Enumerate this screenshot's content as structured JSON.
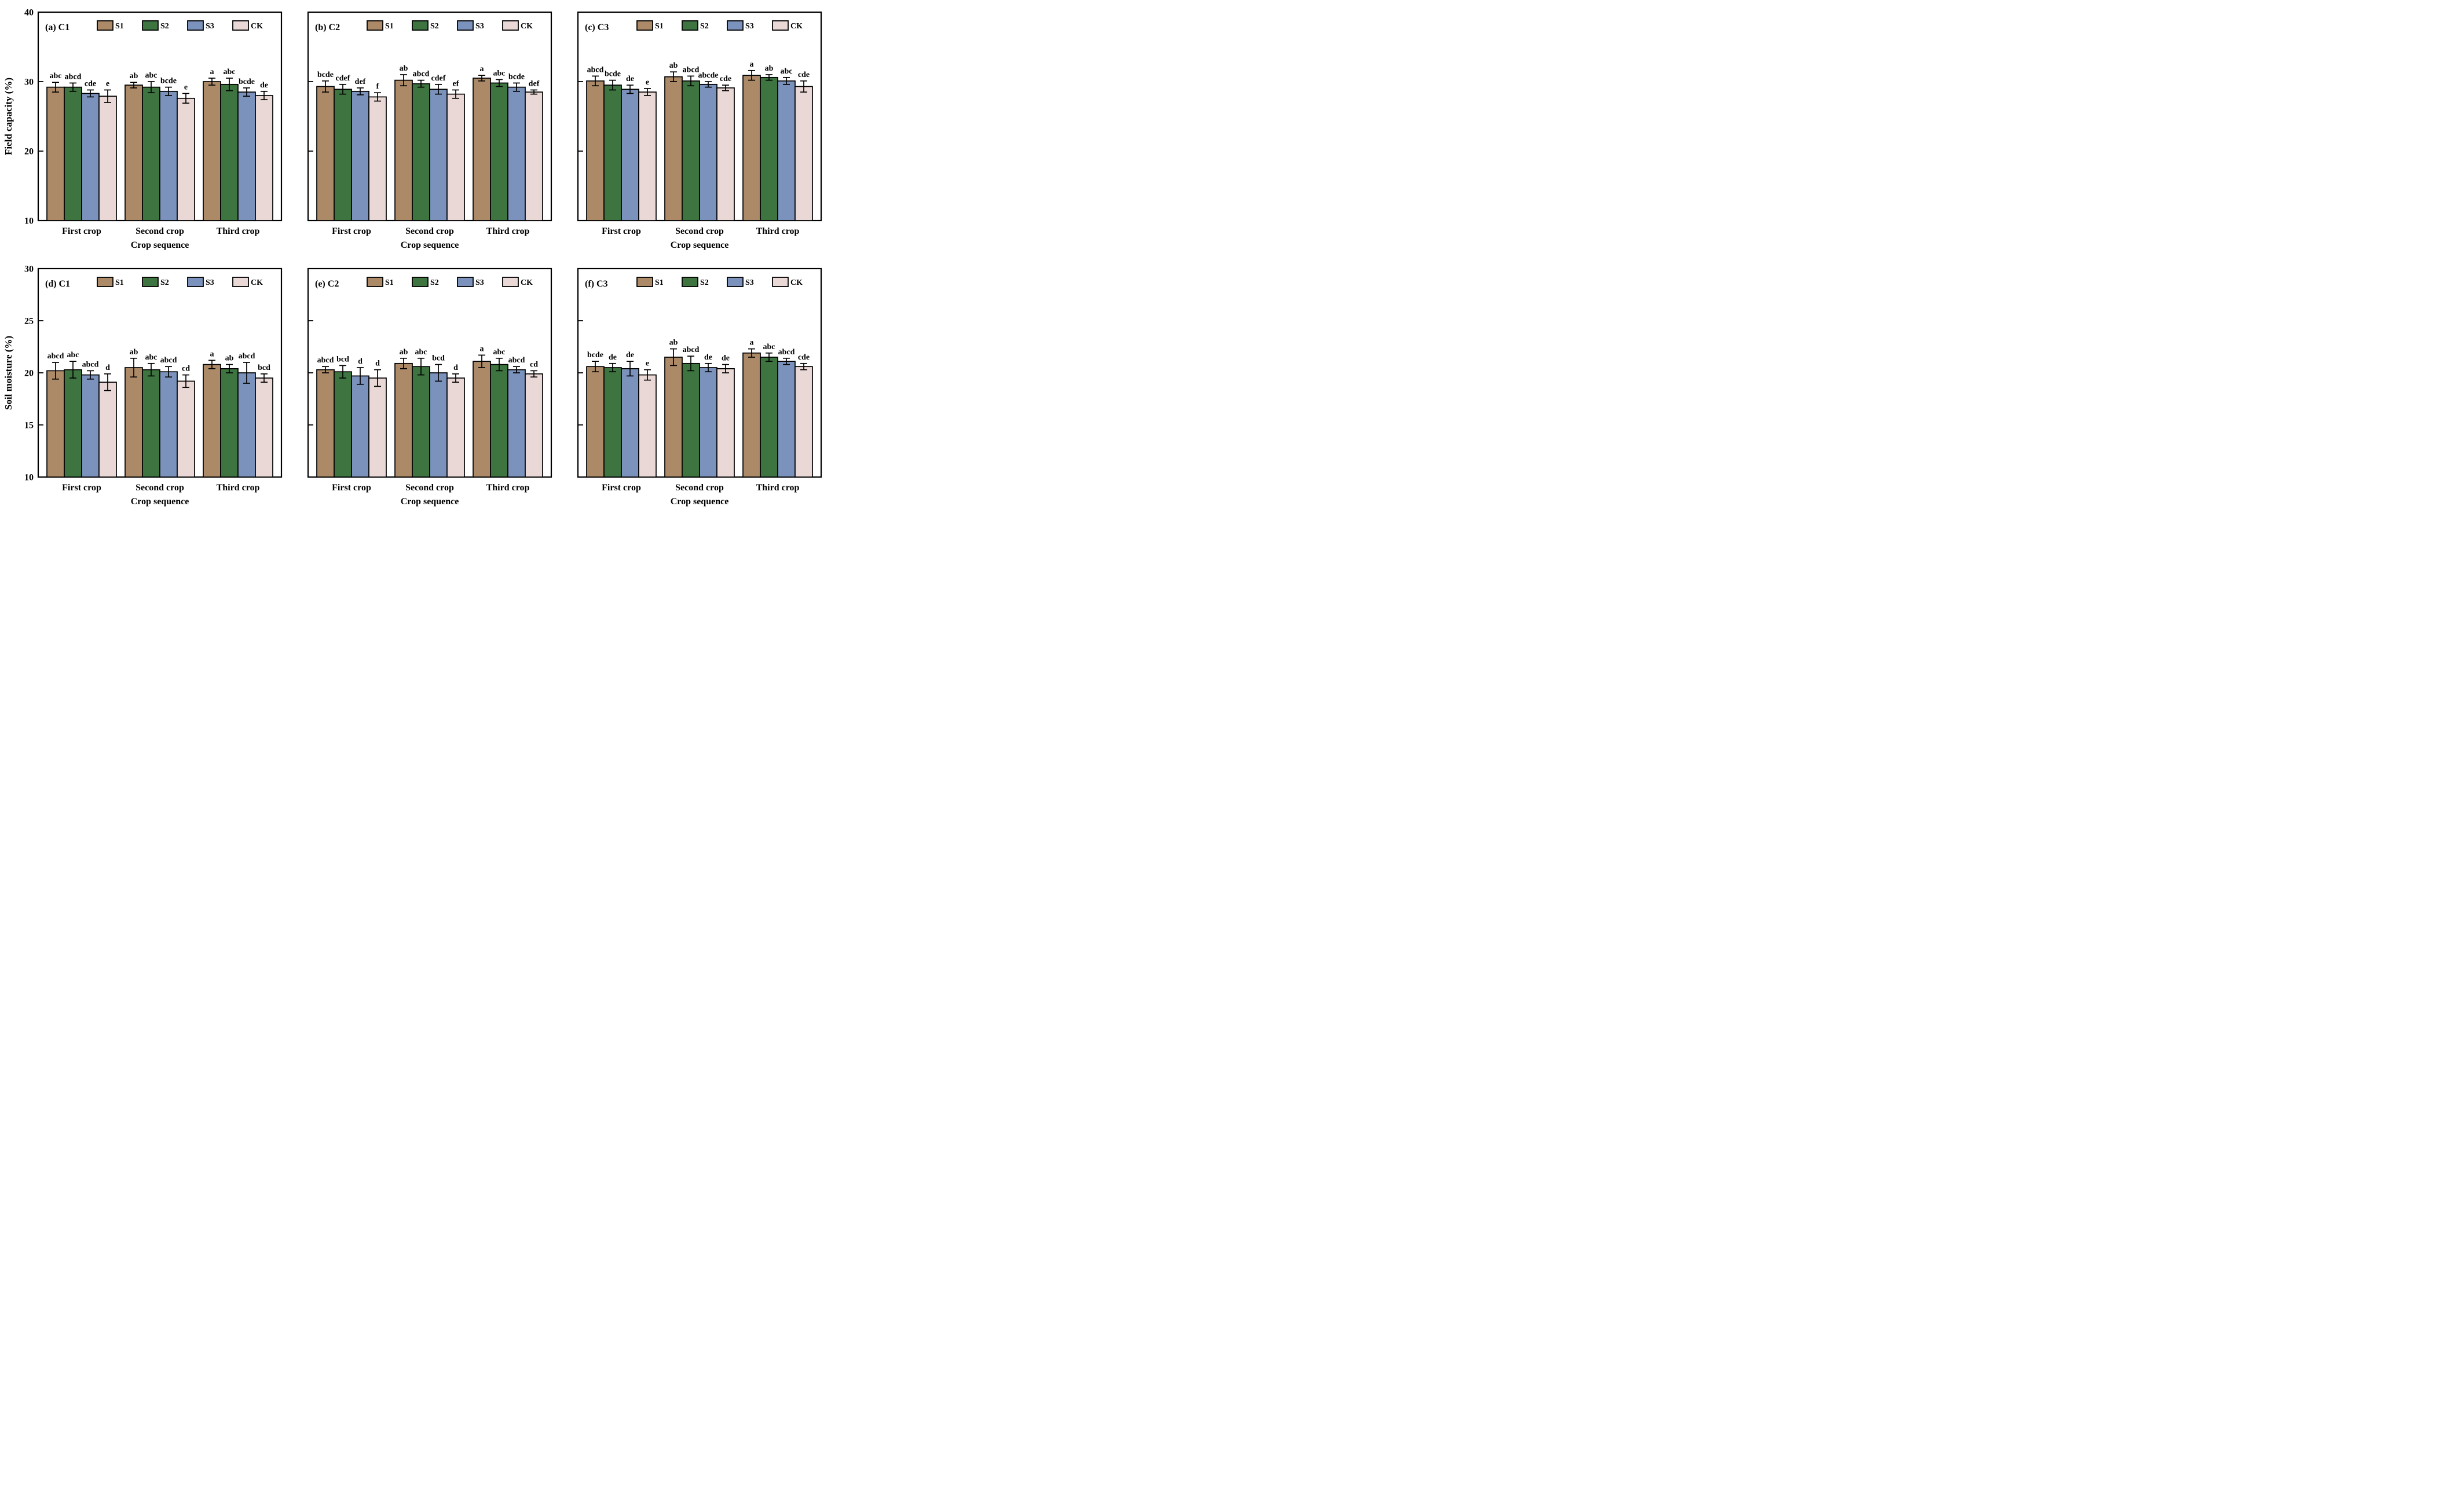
{
  "figure": {
    "description": "Two-row, three-column grouped bar chart figure with error bars and significance letters",
    "rows": 2,
    "cols": 3
  },
  "colors": {
    "S1": "#ac8a68",
    "S2": "#3d7440",
    "S3": "#7b93bc",
    "CK": "#e9d8d5",
    "edge": "#000000",
    "text": "#000000"
  },
  "chart_data": [
    {
      "type": "bar",
      "panel_label": "(a) C1",
      "row": 0,
      "ylabel": "Field capacity (%)",
      "xlabel": "Crop sequence",
      "ylim": [
        10,
        40
      ],
      "yticks": [
        10,
        20,
        30,
        40
      ],
      "grid": false,
      "legend_position": "top-inside",
      "categories": [
        "First crop",
        "Second crop",
        "Third crop"
      ],
      "legend": [
        "S1",
        "S2",
        "S3",
        "CK"
      ],
      "series": [
        {
          "name": "S1",
          "values": [
            29.2,
            29.5,
            30.0
          ],
          "errors": [
            0.7,
            0.4,
            0.5
          ],
          "letters": [
            "abc",
            "ab",
            "a"
          ]
        },
        {
          "name": "S2",
          "values": [
            29.2,
            29.2,
            29.6
          ],
          "errors": [
            0.6,
            0.8,
            0.9
          ],
          "letters": [
            "abcd",
            "abc",
            "abc"
          ]
        },
        {
          "name": "S3",
          "values": [
            28.3,
            28.6,
            28.5
          ],
          "errors": [
            0.5,
            0.6,
            0.6
          ],
          "letters": [
            "cde",
            "bcde",
            "bcde"
          ]
        },
        {
          "name": "CK",
          "values": [
            27.9,
            27.6,
            28.0
          ],
          "errors": [
            0.9,
            0.7,
            0.6
          ],
          "letters": [
            "e",
            "e",
            "de"
          ]
        }
      ]
    },
    {
      "type": "bar",
      "panel_label": "(b) C2",
      "row": 0,
      "ylabel": "Field capacity (%)",
      "xlabel": "Crop sequence",
      "ylim": [
        10,
        40
      ],
      "yticks": [
        10,
        20,
        30,
        40
      ],
      "grid": false,
      "legend_position": "top-inside",
      "categories": [
        "First crop",
        "Second crop",
        "Third crop"
      ],
      "legend": [
        "S1",
        "S2",
        "S3",
        "CK"
      ],
      "series": [
        {
          "name": "S1",
          "values": [
            29.3,
            30.2,
            30.5
          ],
          "errors": [
            0.8,
            0.8,
            0.4
          ],
          "letters": [
            "bcde",
            "ab",
            "a"
          ]
        },
        {
          "name": "S2",
          "values": [
            28.9,
            29.7,
            29.8
          ],
          "errors": [
            0.7,
            0.5,
            0.5
          ],
          "letters": [
            "cdef",
            "abcd",
            "abc"
          ]
        },
        {
          "name": "S3",
          "values": [
            28.6,
            28.9,
            29.2
          ],
          "errors": [
            0.5,
            0.7,
            0.6
          ],
          "letters": [
            "def",
            "cdef",
            "bcde"
          ]
        },
        {
          "name": "CK",
          "values": [
            27.8,
            28.2,
            28.5
          ],
          "errors": [
            0.6,
            0.6,
            0.3
          ],
          "letters": [
            "f",
            "ef",
            "def"
          ]
        }
      ]
    },
    {
      "type": "bar",
      "panel_label": "(c) C3",
      "row": 0,
      "ylabel": "Field capacity (%)",
      "xlabel": "Crop sequence",
      "ylim": [
        10,
        40
      ],
      "yticks": [
        10,
        20,
        30,
        40
      ],
      "grid": false,
      "legend_position": "top-inside",
      "categories": [
        "First crop",
        "Second crop",
        "Third crop"
      ],
      "legend": [
        "S1",
        "S2",
        "S3",
        "CK"
      ],
      "series": [
        {
          "name": "S1",
          "values": [
            30.1,
            30.7,
            30.9
          ],
          "errors": [
            0.7,
            0.7,
            0.7
          ],
          "letters": [
            "abcd",
            "ab",
            "a"
          ]
        },
        {
          "name": "S2",
          "values": [
            29.5,
            30.1,
            30.6
          ],
          "errors": [
            0.7,
            0.7,
            0.4
          ],
          "letters": [
            "bcde",
            "abcd",
            "ab"
          ]
        },
        {
          "name": "S3",
          "values": [
            28.9,
            29.6,
            30.1
          ],
          "errors": [
            0.6,
            0.4,
            0.5
          ],
          "letters": [
            "de",
            "abcde",
            "abc"
          ]
        },
        {
          "name": "CK",
          "values": [
            28.5,
            29.1,
            29.3
          ],
          "errors": [
            0.5,
            0.4,
            0.8
          ],
          "letters": [
            "e",
            "cde",
            "cde"
          ]
        }
      ]
    },
    {
      "type": "bar",
      "panel_label": "(d) C1",
      "row": 1,
      "ylabel": "Soil moisture (%)",
      "xlabel": "Crop sequence",
      "ylim": [
        10,
        30
      ],
      "yticks": [
        10,
        15,
        20,
        25,
        30
      ],
      "grid": false,
      "legend_position": "top-inside",
      "categories": [
        "First crop",
        "Second crop",
        "Third crop"
      ],
      "legend": [
        "S1",
        "S2",
        "S3",
        "CK"
      ],
      "series": [
        {
          "name": "S1",
          "values": [
            20.2,
            20.5,
            20.8
          ],
          "errors": [
            0.8,
            0.9,
            0.4
          ],
          "letters": [
            "abcd",
            "ab",
            "a"
          ]
        },
        {
          "name": "S2",
          "values": [
            20.3,
            20.3,
            20.4
          ],
          "errors": [
            0.8,
            0.6,
            0.4
          ],
          "letters": [
            "abc",
            "abc",
            "ab"
          ]
        },
        {
          "name": "S3",
          "values": [
            19.8,
            20.1,
            20.0
          ],
          "errors": [
            0.4,
            0.5,
            1.0
          ],
          "letters": [
            "abcd",
            "abcd",
            "abcd"
          ]
        },
        {
          "name": "CK",
          "values": [
            19.1,
            19.2,
            19.5
          ],
          "errors": [
            0.8,
            0.6,
            0.4
          ],
          "letters": [
            "d",
            "cd",
            "bcd"
          ]
        }
      ]
    },
    {
      "type": "bar",
      "panel_label": "(e) C2",
      "row": 1,
      "ylabel": "Soil moisture (%)",
      "xlabel": "Crop sequence",
      "ylim": [
        10,
        30
      ],
      "yticks": [
        10,
        15,
        20,
        25,
        30
      ],
      "grid": false,
      "legend_position": "top-inside",
      "categories": [
        "First crop",
        "Second crop",
        "Third crop"
      ],
      "legend": [
        "S1",
        "S2",
        "S3",
        "CK"
      ],
      "series": [
        {
          "name": "S1",
          "values": [
            20.3,
            20.9,
            21.1
          ],
          "errors": [
            0.3,
            0.5,
            0.6
          ],
          "letters": [
            "abcd",
            "ab",
            "a"
          ]
        },
        {
          "name": "S2",
          "values": [
            20.1,
            20.6,
            20.8
          ],
          "errors": [
            0.6,
            0.8,
            0.6
          ],
          "letters": [
            "bcd",
            "abc",
            "abc"
          ]
        },
        {
          "name": "S3",
          "values": [
            19.7,
            20.0,
            20.3
          ],
          "errors": [
            0.8,
            0.8,
            0.3
          ],
          "letters": [
            "d",
            "bcd",
            "abcd"
          ]
        },
        {
          "name": "CK",
          "values": [
            19.5,
            19.5,
            19.9
          ],
          "errors": [
            0.8,
            0.4,
            0.3
          ],
          "letters": [
            "d",
            "d",
            "cd"
          ]
        }
      ]
    },
    {
      "type": "bar",
      "panel_label": "(f) C3",
      "row": 1,
      "ylabel": "Soil moisture (%)",
      "xlabel": "Crop sequence",
      "ylim": [
        10,
        30
      ],
      "yticks": [
        10,
        15,
        20,
        25,
        30
      ],
      "grid": false,
      "legend_position": "top-inside",
      "categories": [
        "First crop",
        "Second crop",
        "Third crop"
      ],
      "legend": [
        "S1",
        "S2",
        "S3",
        "CK"
      ],
      "series": [
        {
          "name": "S1",
          "values": [
            20.6,
            21.5,
            21.9
          ],
          "errors": [
            0.5,
            0.8,
            0.4
          ],
          "letters": [
            "bcde",
            "ab",
            "a"
          ]
        },
        {
          "name": "S2",
          "values": [
            20.5,
            20.9,
            21.5
          ],
          "errors": [
            0.4,
            0.7,
            0.4
          ],
          "letters": [
            "de",
            "abcd",
            "abc"
          ]
        },
        {
          "name": "S3",
          "values": [
            20.4,
            20.5,
            21.1
          ],
          "errors": [
            0.7,
            0.4,
            0.3
          ],
          "letters": [
            "de",
            "de",
            "abcd"
          ]
        },
        {
          "name": "CK",
          "values": [
            19.8,
            20.4,
            20.6
          ],
          "errors": [
            0.5,
            0.4,
            0.3
          ],
          "letters": [
            "e",
            "de",
            "cde"
          ]
        }
      ]
    }
  ]
}
